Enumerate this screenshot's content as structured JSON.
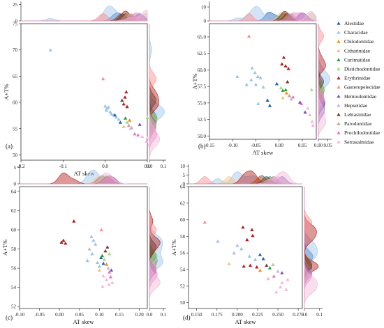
{
  "chart_data": {
    "legend": {
      "placement": "right",
      "entries": [
        {
          "name": "Alestidae",
          "color": "#1f5fb4"
        },
        {
          "name": "Characidae",
          "color": "#9cc3ea"
        },
        {
          "name": "Chilodontidae",
          "color": "#ff8c00"
        },
        {
          "name": "Citharinidae",
          "color": "#f5c07a"
        },
        {
          "name": "Curimatidae",
          "color": "#1f9e3a"
        },
        {
          "name": "Distichodontidae",
          "color": "#a5d68c"
        },
        {
          "name": "Erythrinidae",
          "color": "#b31b1b"
        },
        {
          "name": "Gasteropelecidae",
          "color": "#ff8a8a"
        },
        {
          "name": "Hemiodontidae",
          "color": "#7b4fb0"
        },
        {
          "name": "Hepsetidae",
          "color": "#c9b3de"
        },
        {
          "name": "Lebiasinidae",
          "color": "#6b3a2a"
        },
        {
          "name": "Parodontidae",
          "color": "#c6a08e"
        },
        {
          "name": "Prochilodontidae",
          "color": "#e377c2"
        },
        {
          "name": "Serrasalmidae",
          "color": "#f4b6d8"
        }
      ]
    },
    "panels": [
      {
        "label": "(a)",
        "type": "scatter",
        "xlabel": "AT skew",
        "ylabel": "A+T%",
        "xlim": [
          -0.2,
          0.1
        ],
        "ylim": [
          49,
          75
        ],
        "xticks": [
          {
            "v": -0.2,
            "t": "-0.2"
          },
          {
            "v": -0.1,
            "t": "-0.1"
          },
          {
            "v": 0.0,
            "t": "0.0"
          },
          {
            "v": 0.1,
            "t": "0.1"
          }
        ],
        "yticks": [
          {
            "v": 50,
            "t": "50"
          },
          {
            "v": 55,
            "t": "55"
          },
          {
            "v": 60,
            "t": "60"
          },
          {
            "v": 65,
            "t": "65"
          },
          {
            "v": 70,
            "t": "70"
          },
          {
            "v": 75,
            "t": "75"
          }
        ],
        "top_ylim": [
          0,
          30
        ],
        "top_ticks": [
          {
            "v": 0,
            "t": "0"
          },
          {
            "v": 25,
            "t": "25"
          }
        ],
        "right_xlim": [
          0,
          0.12
        ],
        "right_ticks": [
          {
            "v": 0.0,
            "t": "0.0"
          },
          {
            "v": 0.1,
            "t": "0.1"
          }
        ],
        "points": [
          {
            "f": 1,
            "x": -0.13,
            "y": 70.0
          },
          {
            "f": 7,
            "x": -0.005,
            "y": 64.5
          },
          {
            "f": 1,
            "x": 0.0,
            "y": 59.3
          },
          {
            "f": 1,
            "x": 0.004,
            "y": 58.9
          },
          {
            "f": 1,
            "x": 0.008,
            "y": 59.1
          },
          {
            "f": 1,
            "x": 0.003,
            "y": 58.5
          },
          {
            "f": 1,
            "x": 0.012,
            "y": 58.2
          },
          {
            "f": 1,
            "x": 0.015,
            "y": 57.8
          },
          {
            "f": 1,
            "x": 0.02,
            "y": 57.6
          },
          {
            "f": 1,
            "x": 0.026,
            "y": 57.2
          },
          {
            "f": 1,
            "x": 0.032,
            "y": 56.8
          },
          {
            "f": 0,
            "x": 0.023,
            "y": 57.6
          },
          {
            "f": 0,
            "x": 0.036,
            "y": 56.2
          },
          {
            "f": 6,
            "x": 0.05,
            "y": 62.0
          },
          {
            "f": 6,
            "x": 0.047,
            "y": 61.0
          },
          {
            "f": 6,
            "x": 0.044,
            "y": 59.7
          },
          {
            "f": 6,
            "x": 0.052,
            "y": 59.2
          },
          {
            "f": 10,
            "x": 0.04,
            "y": 60.4
          },
          {
            "f": 4,
            "x": 0.048,
            "y": 57.0
          },
          {
            "f": 5,
            "x": 0.052,
            "y": 56.2
          },
          {
            "f": 11,
            "x": 0.056,
            "y": 55.6
          },
          {
            "f": 2,
            "x": 0.058,
            "y": 56.6
          },
          {
            "f": 3,
            "x": 0.044,
            "y": 55.4
          },
          {
            "f": 13,
            "x": 0.06,
            "y": 55.0
          },
          {
            "f": 9,
            "x": 0.063,
            "y": 55.2
          },
          {
            "f": 5,
            "x": 0.1,
            "y": 57.1
          },
          {
            "f": 8,
            "x": 0.082,
            "y": 55.8
          },
          {
            "f": 12,
            "x": 0.07,
            "y": 54.0
          },
          {
            "f": 12,
            "x": 0.078,
            "y": 53.8
          },
          {
            "f": 13,
            "x": 0.088,
            "y": 53.5
          },
          {
            "f": 13,
            "x": 0.098,
            "y": 52.6
          },
          {
            "f": 13,
            "x": 0.1,
            "y": 53.2
          },
          {
            "f": 13,
            "x": 0.105,
            "y": 52.0
          }
        ]
      },
      {
        "label": "(b)",
        "type": "scatter",
        "xlabel": "AT skew",
        "ylabel": "A+T%",
        "xlim": [
          -0.15,
          0.08
        ],
        "ylim": [
          49.5,
          67
        ],
        "xticks": [
          {
            "v": -0.15,
            "t": "-0.15"
          },
          {
            "v": -0.1,
            "t": "-0.10"
          },
          {
            "v": -0.05,
            "t": "-0.05"
          },
          {
            "v": 0.0,
            "t": "0.00"
          },
          {
            "v": 0.05,
            "t": "0.05"
          }
        ],
        "yticks": [
          {
            "v": 50,
            "t": "50.0"
          },
          {
            "v": 52.5,
            "t": "52.5"
          },
          {
            "v": 55,
            "t": "55.0"
          },
          {
            "v": 57.5,
            "t": "57.5"
          },
          {
            "v": 60,
            "t": "60.0"
          },
          {
            "v": 62.5,
            "t": "62.5"
          },
          {
            "v": 65,
            "t": "65.0"
          }
        ],
        "top_ylim": [
          0,
          14
        ],
        "top_ticks": [
          {
            "v": 0,
            "t": "0"
          },
          {
            "v": 10,
            "t": "10"
          }
        ],
        "right_xlim": [
          0,
          0.07
        ],
        "right_ticks": [
          {
            "v": 0.0,
            "t": "0.00"
          },
          {
            "v": 0.05,
            "t": "0.05"
          }
        ],
        "points": [
          {
            "f": 7,
            "x": -0.065,
            "y": 65.1
          },
          {
            "f": 1,
            "x": -0.09,
            "y": 59.0
          },
          {
            "f": 1,
            "x": -0.058,
            "y": 60.3
          },
          {
            "f": 1,
            "x": -0.052,
            "y": 59.6
          },
          {
            "f": 1,
            "x": -0.046,
            "y": 59.0
          },
          {
            "f": 1,
            "x": -0.04,
            "y": 58.8
          },
          {
            "f": 1,
            "x": -0.06,
            "y": 58.5
          },
          {
            "f": 1,
            "x": -0.05,
            "y": 57.8
          },
          {
            "f": 1,
            "x": -0.034,
            "y": 57.4
          },
          {
            "f": 1,
            "x": -0.07,
            "y": 57.8
          },
          {
            "f": 1,
            "x": -0.045,
            "y": 54.9
          },
          {
            "f": 0,
            "x": -0.025,
            "y": 55.4
          },
          {
            "f": 0,
            "x": -0.005,
            "y": 57.9
          },
          {
            "f": 0,
            "x": -0.02,
            "y": 54.6
          },
          {
            "f": 6,
            "x": 0.01,
            "y": 61.9
          },
          {
            "f": 6,
            "x": 0.014,
            "y": 60.6
          },
          {
            "f": 6,
            "x": 0.006,
            "y": 60.9
          },
          {
            "f": 6,
            "x": 0.02,
            "y": 60.2
          },
          {
            "f": 10,
            "x": 0.018,
            "y": 58.2
          },
          {
            "f": 4,
            "x": 0.008,
            "y": 56.9
          },
          {
            "f": 4,
            "x": 0.014,
            "y": 57.0
          },
          {
            "f": 5,
            "x": 0.004,
            "y": 57.3
          },
          {
            "f": 2,
            "x": 0.016,
            "y": 56.5
          },
          {
            "f": 3,
            "x": 0.008,
            "y": 55.8
          },
          {
            "f": 11,
            "x": 0.022,
            "y": 56.1
          },
          {
            "f": 9,
            "x": 0.026,
            "y": 55.6
          },
          {
            "f": 12,
            "x": 0.03,
            "y": 55.9
          },
          {
            "f": 8,
            "x": 0.045,
            "y": 55.1
          },
          {
            "f": 12,
            "x": 0.048,
            "y": 54.9
          },
          {
            "f": 5,
            "x": 0.07,
            "y": 57.0
          },
          {
            "f": 13,
            "x": 0.062,
            "y": 54.2
          },
          {
            "f": 13,
            "x": 0.066,
            "y": 53.2
          },
          {
            "f": 13,
            "x": 0.071,
            "y": 52.2
          },
          {
            "f": 13,
            "x": 0.073,
            "y": 51.6
          },
          {
            "f": 8,
            "x": 0.056,
            "y": 53.6
          }
        ]
      },
      {
        "label": "(c)",
        "type": "scatter",
        "xlabel": "AT skew",
        "ylabel": "A+T%",
        "xlim": [
          -0.1,
          0.22
        ],
        "ylim": [
          51.8,
          64.5
        ],
        "xticks": [
          {
            "v": -0.1,
            "t": "-0.10"
          },
          {
            "v": -0.05,
            "t": "-0.05"
          },
          {
            "v": 0.0,
            "t": "0.00"
          },
          {
            "v": 0.05,
            "t": "0.05"
          },
          {
            "v": 0.1,
            "t": "0.10"
          },
          {
            "v": 0.15,
            "t": "0.15"
          },
          {
            "v": 0.2,
            "t": "0.20"
          }
        ],
        "yticks": [
          {
            "v": 52,
            "t": "52"
          },
          {
            "v": 54,
            "t": "54"
          },
          {
            "v": 56,
            "t": "56"
          },
          {
            "v": 58,
            "t": "58"
          },
          {
            "v": 60,
            "t": "60"
          },
          {
            "v": 62,
            "t": "62"
          },
          {
            "v": 64,
            "t": "64"
          }
        ],
        "top_ylim": [
          0,
          6
        ],
        "top_ticks": [
          {
            "v": 0,
            "t": "0"
          },
          {
            "v": 5,
            "t": "5"
          }
        ],
        "right_xlim": [
          0,
          0.12
        ],
        "right_ticks": [
          {
            "v": 0.0,
            "t": "0.0"
          },
          {
            "v": 0.1,
            "t": "0.1"
          }
        ],
        "points": [
          {
            "f": 6,
            "x": 0.036,
            "y": 60.9
          },
          {
            "f": 6,
            "x": 0.005,
            "y": 58.7
          },
          {
            "f": 6,
            "x": 0.01,
            "y": 58.9
          },
          {
            "f": 6,
            "x": 0.015,
            "y": 58.6
          },
          {
            "f": 7,
            "x": 0.105,
            "y": 60.0
          },
          {
            "f": 1,
            "x": 0.08,
            "y": 59.3
          },
          {
            "f": 1,
            "x": 0.085,
            "y": 58.9
          },
          {
            "f": 1,
            "x": 0.09,
            "y": 58.5
          },
          {
            "f": 1,
            "x": 0.075,
            "y": 58.0
          },
          {
            "f": 1,
            "x": 0.082,
            "y": 57.5
          },
          {
            "f": 1,
            "x": 0.07,
            "y": 56.8
          },
          {
            "f": 1,
            "x": 0.095,
            "y": 56.6
          },
          {
            "f": 1,
            "x": 0.1,
            "y": 56.2
          },
          {
            "f": 0,
            "x": 0.104,
            "y": 57.1
          },
          {
            "f": 0,
            "x": 0.11,
            "y": 56.5
          },
          {
            "f": 10,
            "x": 0.12,
            "y": 58.2
          },
          {
            "f": 6,
            "x": 0.115,
            "y": 57.8
          },
          {
            "f": 4,
            "x": 0.107,
            "y": 57.3
          },
          {
            "f": 5,
            "x": 0.112,
            "y": 56.9
          },
          {
            "f": 2,
            "x": 0.118,
            "y": 56.4
          },
          {
            "f": 3,
            "x": 0.1,
            "y": 55.8
          },
          {
            "f": 9,
            "x": 0.122,
            "y": 56.0
          },
          {
            "f": 12,
            "x": 0.125,
            "y": 55.6
          },
          {
            "f": 13,
            "x": 0.11,
            "y": 55.2
          },
          {
            "f": 8,
            "x": 0.13,
            "y": 55.8
          },
          {
            "f": 12,
            "x": 0.128,
            "y": 55.1
          },
          {
            "f": 13,
            "x": 0.118,
            "y": 54.8
          },
          {
            "f": 13,
            "x": 0.124,
            "y": 54.3
          },
          {
            "f": 13,
            "x": 0.132,
            "y": 54.5
          },
          {
            "f": 13,
            "x": 0.108,
            "y": 54.1
          },
          {
            "f": 5,
            "x": 0.125,
            "y": 57.5
          }
        ]
      },
      {
        "label": "(d)",
        "type": "scatter",
        "xlabel": "AT skew",
        "ylabel": "A+T%",
        "xlim": [
          0.14,
          0.28
        ],
        "ylim": [
          49.3,
          64
        ],
        "xticks": [
          {
            "v": 0.15,
            "t": "0.150"
          },
          {
            "v": 0.175,
            "t": "0.175"
          },
          {
            "v": 0.2,
            "t": "0.200"
          },
          {
            "v": 0.225,
            "t": "0.225"
          },
          {
            "v": 0.25,
            "t": "0.250"
          },
          {
            "v": 0.275,
            "t": "0.275"
          }
        ],
        "yticks": [
          {
            "v": 50,
            "t": "50"
          },
          {
            "v": 52,
            "t": "52"
          },
          {
            "v": 54,
            "t": "54"
          },
          {
            "v": 56,
            "t": "56"
          },
          {
            "v": 58,
            "t": "58"
          },
          {
            "v": 60,
            "t": "60"
          },
          {
            "v": 62,
            "t": "62"
          },
          {
            "v": 64,
            "t": "64"
          }
        ],
        "top_ylim": [
          0,
          11
        ],
        "top_ticks": [
          {
            "v": 0,
            "t": "0"
          },
          {
            "v": 5,
            "t": "5"
          },
          {
            "v": 10,
            "t": "10"
          }
        ],
        "right_xlim": [
          0,
          0.12
        ],
        "right_ticks": [
          {
            "v": 0.0,
            "t": "0.0"
          },
          {
            "v": 0.1,
            "t": "0.1"
          }
        ],
        "points": [
          {
            "f": 7,
            "x": 0.16,
            "y": 59.7
          },
          {
            "f": 6,
            "x": 0.207,
            "y": 59.1
          },
          {
            "f": 6,
            "x": 0.218,
            "y": 58.8
          },
          {
            "f": 6,
            "x": 0.219,
            "y": 58.1
          },
          {
            "f": 6,
            "x": 0.212,
            "y": 57.6
          },
          {
            "f": 1,
            "x": 0.176,
            "y": 57.4
          },
          {
            "f": 1,
            "x": 0.2,
            "y": 56.9
          },
          {
            "f": 1,
            "x": 0.205,
            "y": 56.5
          },
          {
            "f": 1,
            "x": 0.196,
            "y": 56.0
          },
          {
            "f": 1,
            "x": 0.215,
            "y": 55.6
          },
          {
            "f": 1,
            "x": 0.222,
            "y": 55.2
          },
          {
            "f": 0,
            "x": 0.228,
            "y": 55.8
          },
          {
            "f": 0,
            "x": 0.232,
            "y": 55.3
          },
          {
            "f": 3,
            "x": 0.19,
            "y": 54.7
          },
          {
            "f": 6,
            "x": 0.208,
            "y": 54.4
          },
          {
            "f": 6,
            "x": 0.216,
            "y": 54.5
          },
          {
            "f": 6,
            "x": 0.224,
            "y": 54.3
          },
          {
            "f": 10,
            "x": 0.236,
            "y": 54.5
          },
          {
            "f": 4,
            "x": 0.24,
            "y": 54.2
          },
          {
            "f": 5,
            "x": 0.244,
            "y": 54.6
          },
          {
            "f": 2,
            "x": 0.228,
            "y": 53.9
          },
          {
            "f": 9,
            "x": 0.25,
            "y": 53.8
          },
          {
            "f": 12,
            "x": 0.245,
            "y": 53.2
          },
          {
            "f": 8,
            "x": 0.255,
            "y": 53.6
          },
          {
            "f": 13,
            "x": 0.238,
            "y": 52.9
          },
          {
            "f": 13,
            "x": 0.255,
            "y": 52.4
          },
          {
            "f": 13,
            "x": 0.26,
            "y": 51.6
          },
          {
            "f": 13,
            "x": 0.248,
            "y": 51.3
          },
          {
            "f": 13,
            "x": 0.262,
            "y": 52.8
          },
          {
            "f": 13,
            "x": 0.253,
            "y": 51.9
          }
        ]
      }
    ]
  }
}
